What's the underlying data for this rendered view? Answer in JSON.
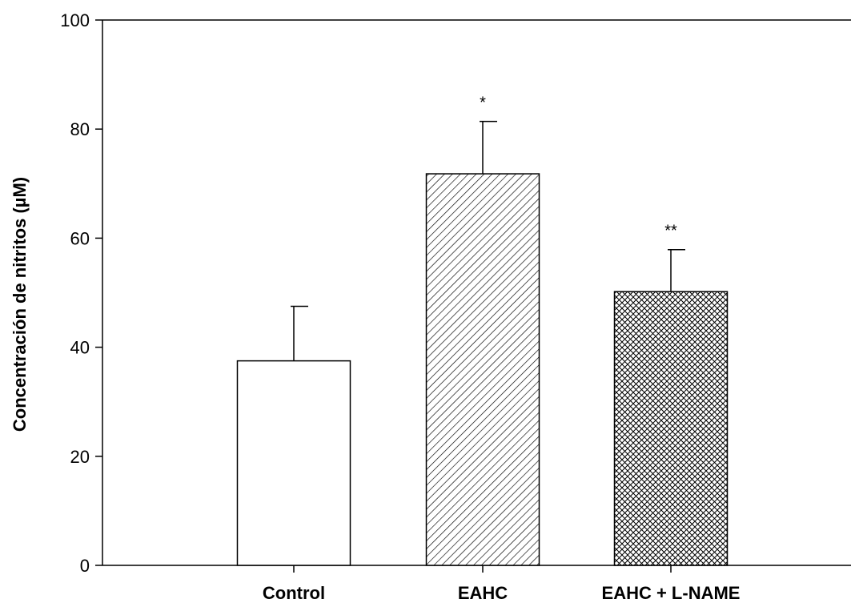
{
  "chart_data": {
    "type": "bar",
    "categories": [
      "Control",
      "EAHC",
      "EAHC + L-NAME"
    ],
    "values": [
      37.5,
      71.8,
      50.2
    ],
    "errors": [
      10.0,
      9.6,
      7.7
    ],
    "significance": [
      "",
      "*",
      "**"
    ],
    "patterns": [
      "solid-white",
      "diagonal-hatch",
      "crosshatch"
    ],
    "xlabel": "",
    "ylabel": "Concentración de nitritos (µM)",
    "ylim": [
      0,
      100
    ],
    "yticks": [
      0,
      20,
      40,
      60,
      80,
      100
    ],
    "grid": false,
    "colors": {
      "bar_fill": "#ffffff",
      "stroke": "#000000"
    }
  }
}
